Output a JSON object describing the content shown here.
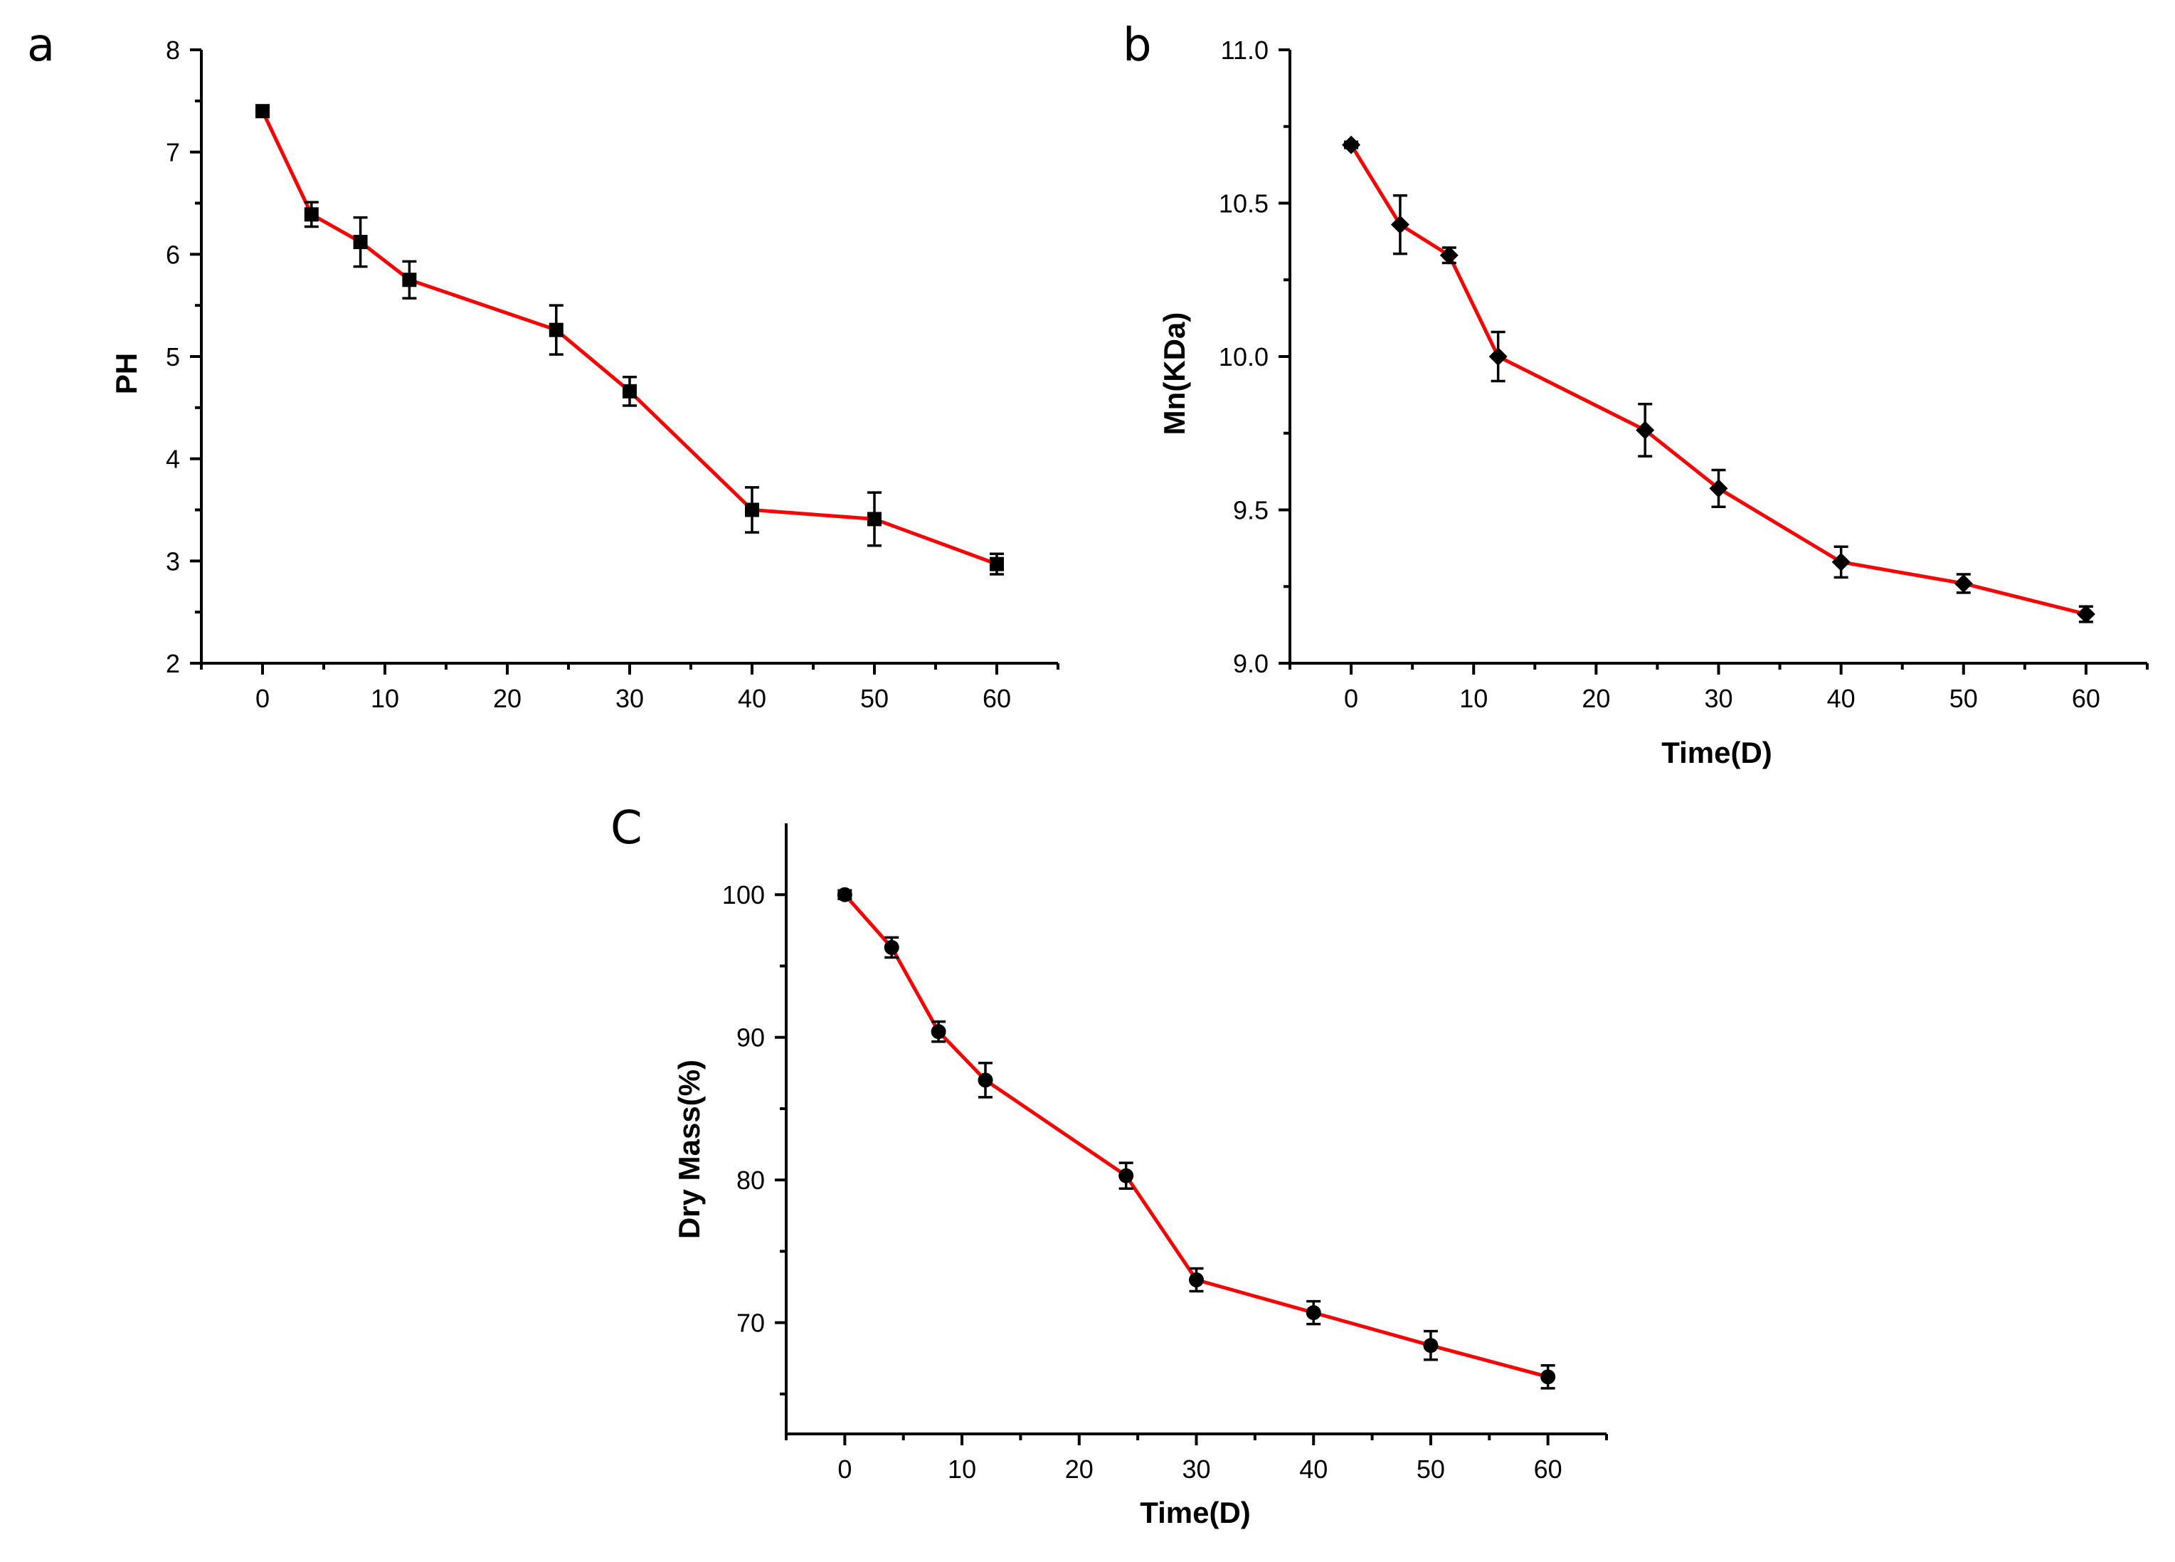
{
  "chart_data": [
    {
      "id": "a",
      "panel_label": "a",
      "type": "line",
      "marker": "square",
      "title": "",
      "xlabel": "",
      "ylabel": "PH",
      "xlim": [
        -5,
        65
      ],
      "ylim": [
        2,
        8
      ],
      "x_ticks": [
        0,
        10,
        20,
        30,
        40,
        50,
        60
      ],
      "y_ticks": [
        2,
        3,
        4,
        5,
        6,
        7,
        8
      ],
      "x_tick_labels": [
        "0",
        "10",
        "20",
        "30",
        "40",
        "50",
        "60"
      ],
      "y_tick_labels": [
        "2",
        "3",
        "4",
        "5",
        "6",
        "7",
        "8"
      ],
      "x": [
        0,
        4,
        8,
        12,
        24,
        30,
        40,
        50,
        60
      ],
      "values": [
        7.4,
        6.39,
        6.12,
        5.75,
        5.26,
        4.66,
        3.5,
        3.41,
        2.97
      ],
      "errors": [
        0.05,
        0.12,
        0.24,
        0.18,
        0.24,
        0.14,
        0.22,
        0.26,
        0.1
      ],
      "line_color": "#ff0000"
    },
    {
      "id": "b",
      "panel_label": "b",
      "type": "line",
      "marker": "diamond",
      "title": "",
      "xlabel": "Time(D)",
      "ylabel": "Mn(KDa)",
      "xlim": [
        -5,
        65
      ],
      "ylim": [
        9.0,
        11.0
      ],
      "x_ticks": [
        0,
        10,
        20,
        30,
        40,
        50,
        60
      ],
      "y_ticks": [
        9.0,
        9.5,
        10.0,
        10.5,
        11.0
      ],
      "x_tick_labels": [
        "0",
        "10",
        "20",
        "30",
        "40",
        "50",
        "60"
      ],
      "y_tick_labels": [
        "9.0",
        "9.5",
        "10.0",
        "10.5",
        "11.0"
      ],
      "x": [
        0,
        4,
        8,
        12,
        24,
        30,
        40,
        50,
        60
      ],
      "values": [
        10.69,
        10.43,
        10.33,
        10.0,
        9.76,
        9.57,
        9.33,
        9.26,
        9.16
      ],
      "errors": [
        0.01,
        0.095,
        0.025,
        0.08,
        0.085,
        0.06,
        0.05,
        0.03,
        0.025
      ],
      "line_color": "#ff0000"
    },
    {
      "id": "c",
      "panel_label": "C",
      "type": "line",
      "marker": "circle",
      "title": "",
      "xlabel": "Time(D)",
      "ylabel": "Dry Mass(%)",
      "xlim": [
        -5,
        65
      ],
      "ylim": [
        62.2,
        105
      ],
      "x_ticks": [
        0,
        10,
        20,
        30,
        40,
        50,
        60
      ],
      "y_ticks": [
        70,
        80,
        90,
        100
      ],
      "minor_y_ticks": [
        65,
        75,
        85,
        95
      ],
      "x_tick_labels": [
        "0",
        "10",
        "20",
        "30",
        "40",
        "50",
        "60"
      ],
      "y_tick_labels": [
        "70",
        "80",
        "90",
        "100"
      ],
      "x": [
        0,
        4,
        8,
        12,
        24,
        30,
        40,
        50,
        60
      ],
      "values": [
        100,
        96.3,
        90.4,
        87.0,
        80.3,
        73.0,
        70.7,
        68.4,
        66.2
      ],
      "errors": [
        0.3,
        0.7,
        0.7,
        1.2,
        0.9,
        0.8,
        0.8,
        1.0,
        0.8
      ],
      "line_color": "#ff0000"
    }
  ]
}
